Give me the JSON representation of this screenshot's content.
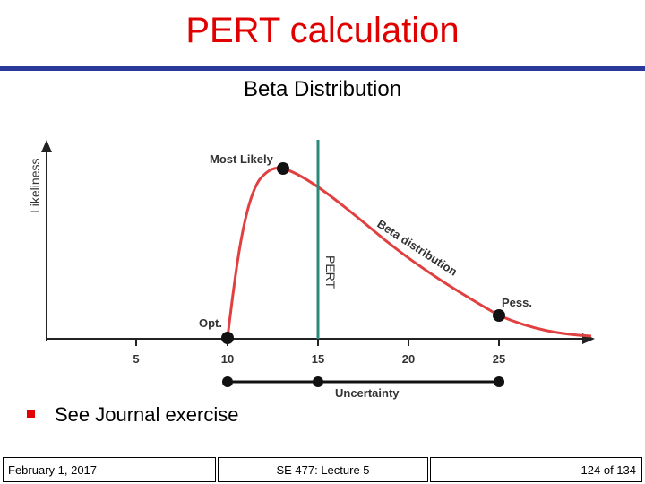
{
  "slide": {
    "title": "PERT calculation",
    "subtitle": "Beta Distribution",
    "bullet": "See Journal exercise"
  },
  "figure": {
    "y_axis_label": "Likeliness",
    "x_ticks": [
      "5",
      "10",
      "15",
      "20",
      "25"
    ],
    "labels": {
      "most_likely": "Most Likely",
      "optimistic": "Opt.",
      "pessimistic": "Pess.",
      "pert": "PERT",
      "curve": "Beta distribution",
      "uncertainty": "Uncertainty"
    },
    "values": {
      "optimistic": 10,
      "most_likely": 13,
      "pert": 15,
      "pessimistic": 25
    }
  },
  "footer": {
    "date": "February 1, 2017",
    "course": "SE 477: Lecture 5",
    "page": "124 of 134"
  },
  "colors": {
    "title": "#e00000",
    "rule": "#2a3a9a",
    "curve": "#e04040",
    "pert_line": "#2a8a7a"
  }
}
